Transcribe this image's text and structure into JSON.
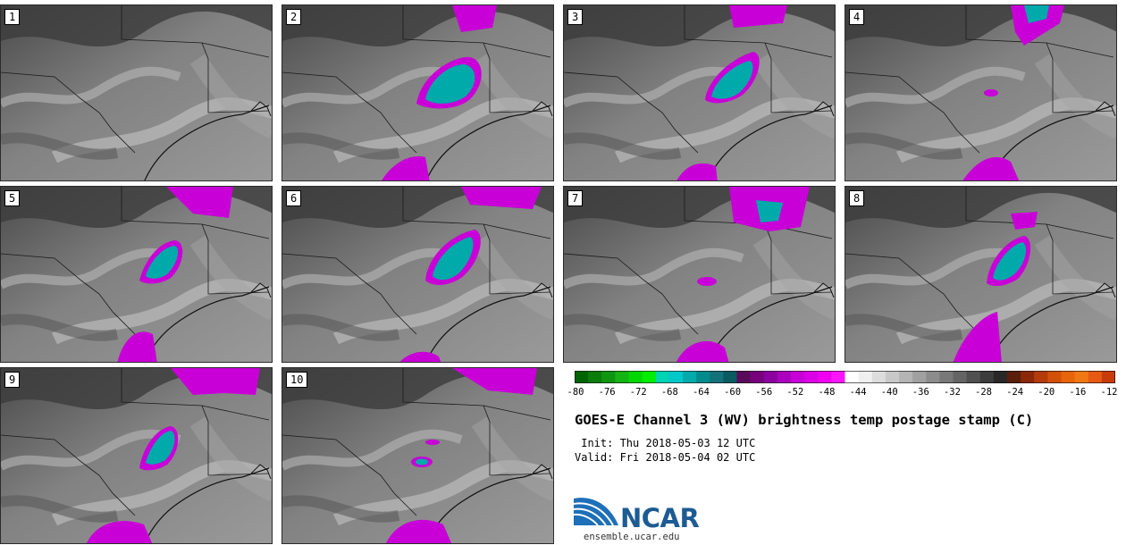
{
  "panels": [
    {
      "label": "1"
    },
    {
      "label": "2"
    },
    {
      "label": "3"
    },
    {
      "label": "4"
    },
    {
      "label": "5"
    },
    {
      "label": "6"
    },
    {
      "label": "7"
    },
    {
      "label": "8"
    },
    {
      "label": "9"
    },
    {
      "label": "10"
    }
  ],
  "colorbar": {
    "ticks": [
      "-80",
      "-76",
      "-72",
      "-68",
      "-64",
      "-60",
      "-56",
      "-52",
      "-48",
      "-44",
      "-40",
      "-36",
      "-32",
      "-28",
      "-24",
      "-20",
      "-16",
      "-12"
    ],
    "colors": [
      "#006400",
      "#0a7d0a",
      "#0f960f",
      "#14b414",
      "#00d700",
      "#00ee00",
      "#00d2b4",
      "#00c8c8",
      "#00aaaa",
      "#008c8c",
      "#14727a",
      "#0a5a64",
      "#5a0a5a",
      "#78007d",
      "#8c00a0",
      "#aa00be",
      "#c800d7",
      "#dc00e6",
      "#f000f0",
      "#ff14ff",
      "#ffffff",
      "#f0f0f0",
      "#dcdcdc",
      "#c8c8c8",
      "#b4b4b4",
      "#a0a0a0",
      "#8c8c8c",
      "#787878",
      "#646464",
      "#505050",
      "#3c3c3c",
      "#282828",
      "#5a1e0a",
      "#8c280a",
      "#b43c0a",
      "#d2500a",
      "#e6640a",
      "#f07814",
      "#e65a14",
      "#c83c0a"
    ]
  },
  "title": "GOES-E Channel 3 (WV) brightness temp postage stamp (C)",
  "init": " Init: Thu 2018-05-03 12 UTC",
  "valid": "Valid: Fri 2018-05-04 02 UTC",
  "logo_word": "NCAR",
  "logo_url": "ensemble.ucar.edu"
}
